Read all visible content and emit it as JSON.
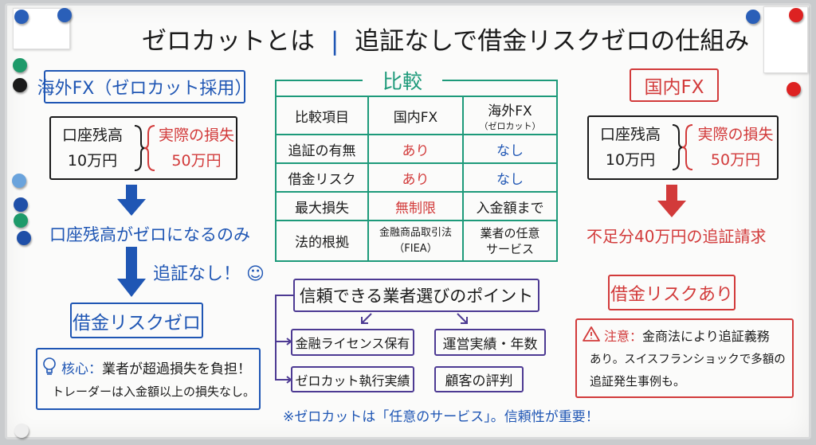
{
  "title": {
    "left": "ゼロカットとは",
    "right": "追証なしで借金リスクゼロの仕組み"
  },
  "overseas": {
    "header": "海外FX（ゼロカット採用）",
    "balance_label": "口座残高",
    "balance_value": "10万円",
    "loss_label": "実際の損失",
    "loss_value": "50万円",
    "step1": "口座残高がゼロになるのみ",
    "step2": "追証なし！",
    "result": "借金リスクゼロ",
    "core_label": "核心：",
    "core_line1": "業者が超過損失を負担！",
    "core_line2": "トレーダーは入金額以上の損失なし。"
  },
  "comparison": {
    "title": "比較",
    "headers": [
      "比較項目",
      "国内FX",
      "海外FX",
      "（ゼロカット）"
    ],
    "rows": [
      {
        "item": "追証の有無",
        "domestic": "あり",
        "overseas": "なし"
      },
      {
        "item": "借金リスク",
        "domestic": "あり",
        "overseas": "なし"
      },
      {
        "item": "最大損失",
        "domestic": "無制限",
        "overseas": "入金額まで"
      },
      {
        "item": "法的根拠",
        "domestic": "金融商品取引法",
        "domestic2": "（FIEA）",
        "overseas": "業者の任意",
        "overseas2": "サービス"
      }
    ]
  },
  "points": {
    "title": "信頼できる業者選びのポイント",
    "items": [
      "金融ライセンス保有",
      "運営実績・年数",
      "ゼロカット執行実績",
      "顧客の評判"
    ],
    "note": "※ゼロカットは「任意のサービス」。信頼性が重要！"
  },
  "domestic": {
    "header": "国内FX",
    "balance_label": "口座残高",
    "balance_value": "10万円",
    "loss_label": "実際の損失",
    "loss_value": "50万円",
    "step1": "不足分40万円の追証請求",
    "result": "借金リスクあり",
    "caution_label": "注意：",
    "caution_line1": "金商法により追証義務",
    "caution_line2": "あり。スイスフランショックで多額の",
    "caution_line3": "追証発生事例も。"
  },
  "colors": {
    "blue": "#1f56b4",
    "red": "#d23a3a",
    "green": "#1d9a7a",
    "purple": "#4d3a93"
  }
}
